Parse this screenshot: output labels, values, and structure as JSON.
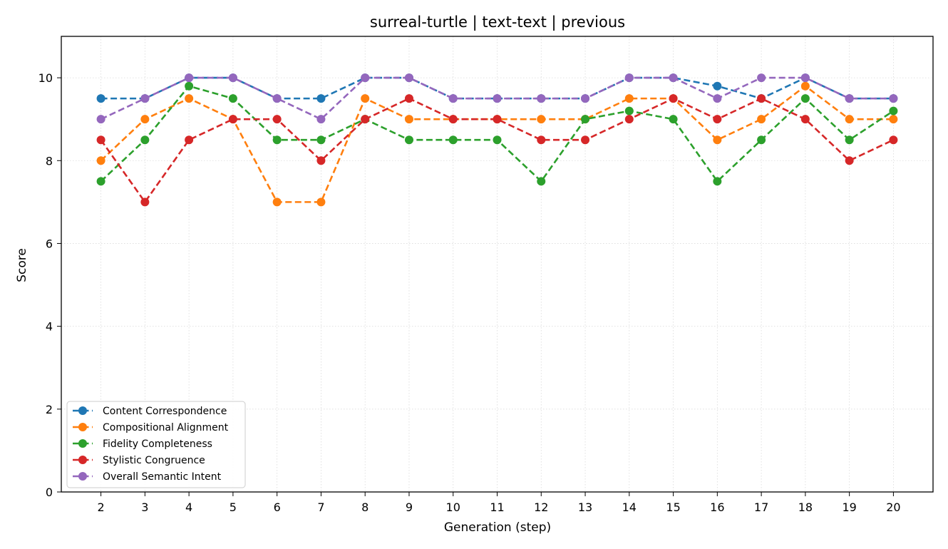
{
  "chart_data": {
    "type": "line",
    "title": "surreal-turtle | text-text | previous",
    "xlabel": "Generation (step)",
    "ylabel": "Score",
    "x": [
      2,
      3,
      4,
      5,
      6,
      7,
      8,
      9,
      10,
      11,
      12,
      13,
      14,
      15,
      16,
      17,
      18,
      19,
      20
    ],
    "xlim": [
      1.1,
      20.9
    ],
    "ylim": [
      0,
      11
    ],
    "yticks": [
      0,
      2,
      4,
      6,
      8,
      10
    ],
    "grid": true,
    "legend_position": "lower-left",
    "series": [
      {
        "name": "Content Correspondence",
        "color": "#1f77b4",
        "values": [
          9.5,
          9.5,
          10,
          10,
          9.5,
          9.5,
          10,
          10,
          9.5,
          9.5,
          9.5,
          9.5,
          10,
          10,
          9.8,
          9.5,
          10,
          9.5,
          9.5
        ]
      },
      {
        "name": "Compositional Alignment",
        "color": "#ff7f0e",
        "values": [
          8,
          9,
          9.5,
          9,
          7,
          7,
          9.5,
          9,
          9,
          9,
          9,
          9,
          9.5,
          9.5,
          8.5,
          9,
          9.8,
          9,
          9
        ]
      },
      {
        "name": "Fidelity Completeness",
        "color": "#2ca02c",
        "values": [
          7.5,
          8.5,
          9.8,
          9.5,
          8.5,
          8.5,
          9,
          8.5,
          8.5,
          8.5,
          7.5,
          9,
          9.2,
          9,
          7.5,
          8.5,
          9.5,
          8.5,
          9.2
        ]
      },
      {
        "name": "Stylistic Congruence",
        "color": "#d62728",
        "values": [
          8.5,
          7,
          8.5,
          9,
          9,
          8,
          9,
          9.5,
          9,
          9,
          8.5,
          8.5,
          9,
          9.5,
          9,
          9.5,
          9,
          8,
          8.5
        ]
      },
      {
        "name": "Overall Semantic Intent",
        "color": "#9467bd",
        "values": [
          9,
          9.5,
          10,
          10,
          9.5,
          9,
          10,
          10,
          9.5,
          9.5,
          9.5,
          9.5,
          10,
          10,
          9.5,
          10,
          10,
          9.5,
          9.5
        ]
      }
    ]
  }
}
